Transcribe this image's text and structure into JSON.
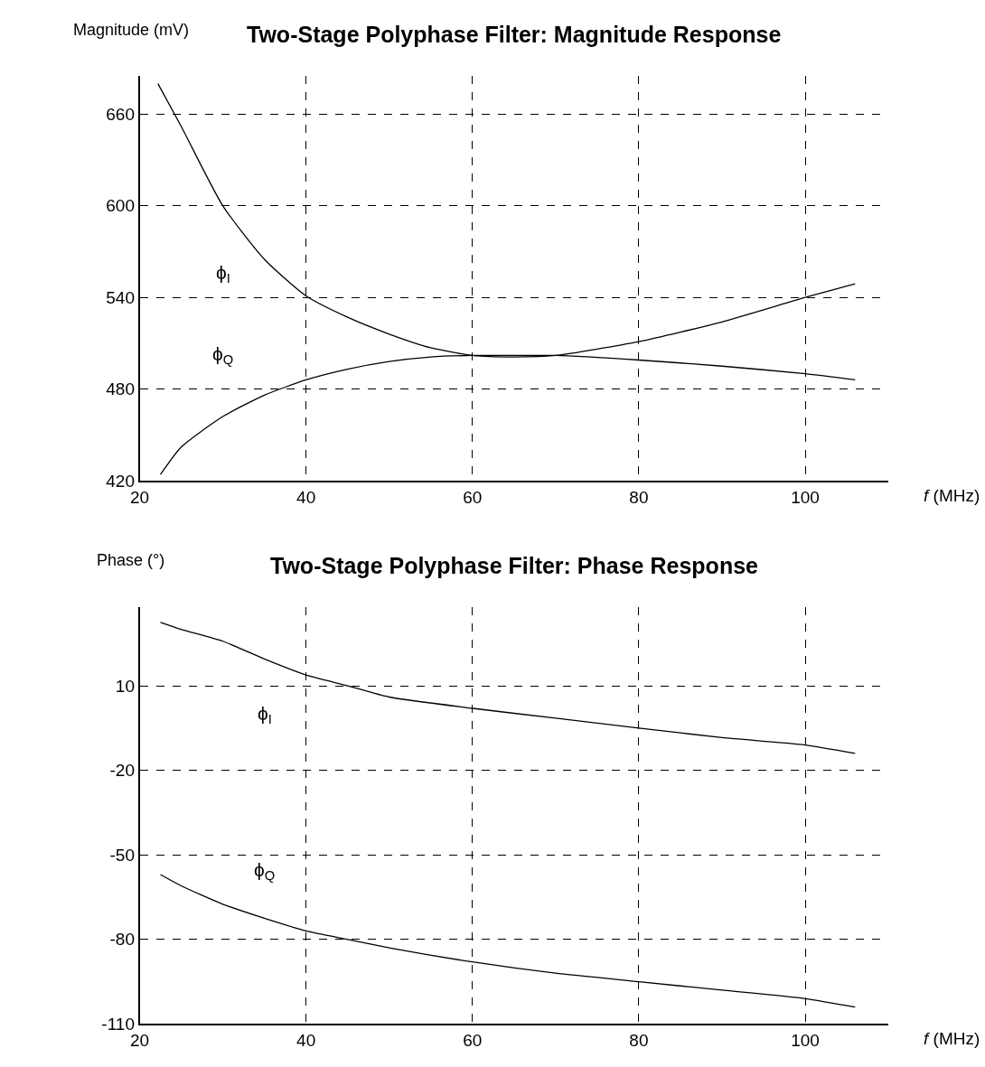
{
  "chart_data": [
    {
      "type": "line",
      "title": "Two-Stage Polyphase Filter: Magnitude Response",
      "xlabel": "f (MHz)",
      "ylabel": "Magnitude (mV)",
      "xlim": [
        20,
        110
      ],
      "xticks": [
        20,
        40,
        60,
        80,
        100
      ],
      "ylim": [
        420,
        685
      ],
      "yticks": [
        420,
        480,
        540,
        600,
        660
      ],
      "grid": true,
      "line_style": "solid",
      "marker": "none",
      "series": [
        {
          "name": "ϕ$_{I}$",
          "color": "#000000",
          "x": [
            22.2,
            25,
            30,
            35,
            40,
            45,
            50,
            55,
            60,
            65,
            70,
            80,
            90,
            100,
            106
          ],
          "values": [
            680,
            652,
            600,
            565,
            541,
            527,
            516,
            507,
            502,
            501,
            502,
            511,
            524,
            540,
            549
          ]
        },
        {
          "name": "ϕ$_{Q}$",
          "color": "#000000",
          "x": [
            22.5,
            25,
            30,
            35,
            40,
            45,
            50,
            55,
            60,
            65,
            70,
            80,
            90,
            100,
            106
          ],
          "values": [
            424,
            442,
            462,
            476,
            486,
            493,
            498,
            501,
            502,
            502,
            502,
            499,
            495,
            490,
            486
          ]
        }
      ]
    },
    {
      "type": "line",
      "title": "Two-Stage Polyphase Filter: Phase Response",
      "xlabel": "f (MHz)",
      "ylabel": "Phase (°)",
      "xlim": [
        20,
        110
      ],
      "xticks": [
        20,
        40,
        60,
        80,
        100
      ],
      "ylim": [
        -110,
        38
      ],
      "yticks": [
        -110,
        -80,
        -50,
        -20,
        10
      ],
      "grid": true,
      "line_style": "solid",
      "marker": "none",
      "series": [
        {
          "name": "ϕ$_{I}$",
          "color": "#000000",
          "x": [
            22.5,
            25,
            30,
            35,
            40,
            45,
            50,
            60,
            70,
            80,
            90,
            100,
            106
          ],
          "values": [
            32.5,
            30,
            25.8,
            19.5,
            13.8,
            10,
            6,
            2,
            -1.5,
            -5,
            -8.4,
            -11,
            -14
          ]
        },
        {
          "name": "ϕ$_{Q}$",
          "color": "#000000",
          "x": [
            22.5,
            25,
            30,
            35,
            40,
            45,
            50,
            60,
            70,
            80,
            90,
            100,
            106
          ],
          "values": [
            -57,
            -61,
            -67.5,
            -72.5,
            -77,
            -80,
            -83,
            -88,
            -92,
            -95,
            -98,
            -101,
            -104
          ]
        }
      ]
    }
  ]
}
